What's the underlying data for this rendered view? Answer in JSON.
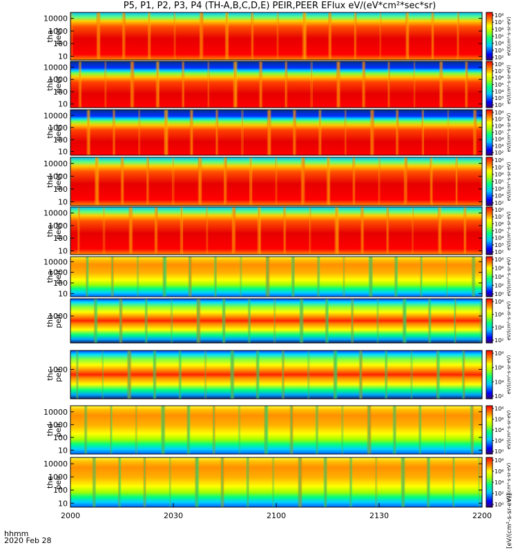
{
  "title": "P5, P1, P2, P3, P4 (TH-A,B,C,D,E) PEIR,PEER EFlux eV/(eV*cm²*sec*sr)",
  "corner": {
    "line1": "hhmm",
    "line2": "2020 Feb 28"
  },
  "colorbar_unit_label": "[eV/(cm²-s-sr-eV)]",
  "colors": {
    "frame": "#000000",
    "background": "#ffffff"
  },
  "chart_data": {
    "type": "heatmap",
    "x_axis": {
      "ticks": [
        "2000",
        "2030",
        "2100",
        "2130",
        "2200"
      ],
      "range": [
        "20:00",
        "22:00"
      ]
    },
    "y_scale": "log",
    "panels": [
      {
        "probe": "tha",
        "species": "peer",
        "yticks": [
          "10000",
          "1000",
          "100",
          "10"
        ],
        "ylim": [
          5,
          30000
        ],
        "cb_ticks": [
          "10⁸",
          "10⁷",
          "10⁶",
          "10⁵",
          "10⁴",
          "10³",
          "10²"
        ],
        "cb_label": "eV/(cm²-s-sr-eV)"
      },
      {
        "probe": "thb",
        "species": "peer",
        "yticks": [
          "10000",
          "1000",
          "100",
          "10"
        ],
        "ylim": [
          5,
          30000
        ],
        "cb_ticks": [
          "10⁸",
          "10⁷",
          "10⁶",
          "10⁵",
          "10⁴",
          "10³",
          "10²"
        ],
        "cb_label": "eV/(cm²-s-sr-eV)"
      },
      {
        "probe": "thc",
        "species": "peer",
        "yticks": [
          "10000",
          "1000",
          "100",
          "10"
        ],
        "ylim": [
          5,
          30000
        ],
        "cb_ticks": [
          "10⁸",
          "10⁷",
          "10⁶",
          "10⁵",
          "10⁴",
          "10³",
          "10²"
        ],
        "cb_label": "eV/(cm²-s-sr-eV)"
      },
      {
        "probe": "thd",
        "species": "peer",
        "yticks": [
          "10000",
          "1000",
          "100",
          "10"
        ],
        "ylim": [
          5,
          30000
        ],
        "cb_ticks": [
          "10⁸",
          "10⁷",
          "10⁶",
          "10⁵",
          "10⁴",
          "10³",
          "10²"
        ],
        "cb_label": "eV/(cm²-s-sr-eV)"
      },
      {
        "probe": "the",
        "species": "peer",
        "yticks": [
          "10000",
          "1000",
          "100",
          "10"
        ],
        "ylim": [
          5,
          30000
        ],
        "cb_ticks": [
          "10⁸",
          "10⁷",
          "10⁶",
          "10⁵",
          "10⁴",
          "10³",
          "10²"
        ],
        "cb_label": "eV/(cm²-s-sr-eV)"
      },
      {
        "probe": "tha",
        "species": "peir",
        "yticks": [
          "10000",
          "1000",
          "100",
          "10"
        ],
        "ylim": [
          5,
          30000
        ],
        "cb_ticks": [
          "10⁸",
          "10⁶",
          "10⁴",
          "10²",
          "10⁰"
        ],
        "cb_label": "eV/(cm²-s-sr-eV)"
      },
      {
        "probe": "thb",
        "species": "peir",
        "yticks": [
          "1000"
        ],
        "ylim": [
          5,
          30000
        ],
        "cb_ticks": [
          "10⁸",
          "10⁶",
          "10⁴",
          "10²"
        ],
        "cb_label": "eV/(cm²-s-sr-eV)"
      },
      {
        "probe": "thc",
        "species": "peir",
        "yticks": [
          "1000"
        ],
        "ylim": [
          5,
          30000
        ],
        "cb_ticks": [
          "10⁸",
          "10⁶",
          "10⁴",
          "10²"
        ],
        "cb_label": "eV/(cm²-s-sr-eV)"
      },
      {
        "probe": "thd",
        "species": "peir",
        "yticks": [
          "10000",
          "1000",
          "100",
          "10"
        ],
        "ylim": [
          5,
          30000
        ],
        "cb_ticks": [
          "10⁸",
          "10⁶",
          "10⁴",
          "10²",
          "10⁰"
        ],
        "cb_label": "eV/(cm²-s-sr-eV)"
      },
      {
        "probe": "the",
        "species": "peir",
        "yticks": [
          "10000",
          "1000",
          "100",
          "10"
        ],
        "ylim": [
          5,
          30000
        ],
        "cb_ticks": [
          "10⁸",
          "10⁶",
          "10⁴",
          "10²",
          "10⁰"
        ],
        "cb_label": "eV/(cm²-s-sr-eV)"
      }
    ]
  }
}
